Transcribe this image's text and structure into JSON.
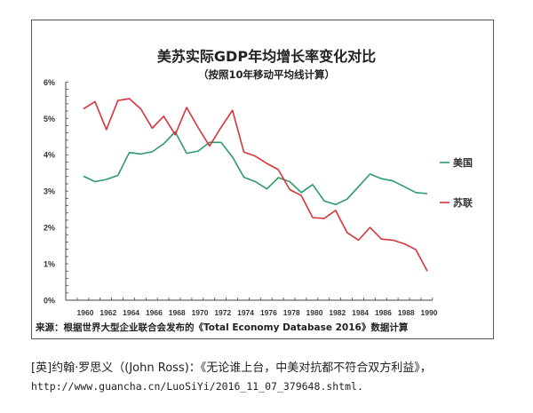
{
  "chart_data": {
    "type": "line",
    "title": "美苏实际GDP年均增长率变化对比",
    "subtitle": "（按照10年移动平均线计算）",
    "x": [
      1960,
      1961,
      1962,
      1963,
      1964,
      1965,
      1966,
      1967,
      1968,
      1969,
      1970,
      1971,
      1972,
      1973,
      1974,
      1975,
      1976,
      1977,
      1978,
      1979,
      1980,
      1981,
      1982,
      1983,
      1984,
      1985,
      1986,
      1987,
      1988,
      1989,
      1990
    ],
    "x_tick_labels": [
      "1960",
      "1962",
      "1964",
      "1966",
      "1968",
      "1970",
      "1972",
      "1974",
      "1976",
      "1978",
      "1980",
      "1982",
      "1984",
      "1986",
      "1988",
      "1990"
    ],
    "y_tick_labels": [
      "0%",
      "1%",
      "2%",
      "3%",
      "4%",
      "5%",
      "6%"
    ],
    "ylim": [
      0,
      6
    ],
    "grid": false,
    "legend_position": "right",
    "series": [
      {
        "name": "美国",
        "color": "#2e9a6a",
        "values": [
          3.41,
          3.26,
          3.32,
          3.43,
          4.06,
          4.02,
          4.08,
          4.3,
          4.63,
          4.04,
          4.1,
          4.34,
          4.34,
          3.94,
          3.38,
          3.26,
          3.06,
          3.37,
          3.26,
          2.96,
          3.18,
          2.73,
          2.63,
          2.78,
          3.12,
          3.47,
          3.34,
          3.28,
          3.12,
          2.96,
          2.93
        ]
      },
      {
        "name": "苏联",
        "color": "#d8333a",
        "values": [
          5.26,
          5.46,
          4.69,
          5.49,
          5.54,
          5.26,
          4.73,
          5.06,
          4.55,
          5.3,
          4.75,
          4.24,
          4.75,
          5.22,
          4.07,
          3.96,
          3.76,
          3.59,
          3.04,
          2.88,
          2.27,
          2.25,
          2.47,
          1.86,
          1.65,
          2.0,
          1.68,
          1.65,
          1.55,
          1.39,
          0.8
        ]
      }
    ],
    "source": "来源：根据世界大型企业联合会发布的《Total Economy Database 2016》数据计算"
  },
  "citation": {
    "line1": "[英]约翰·罗思义（(John Ross)：《无论谁上台，中美对抗都不符合双方利益》，",
    "line2": "http://www.guancha.cn/LuoSiYi/2016_11_07_379648.shtml."
  }
}
